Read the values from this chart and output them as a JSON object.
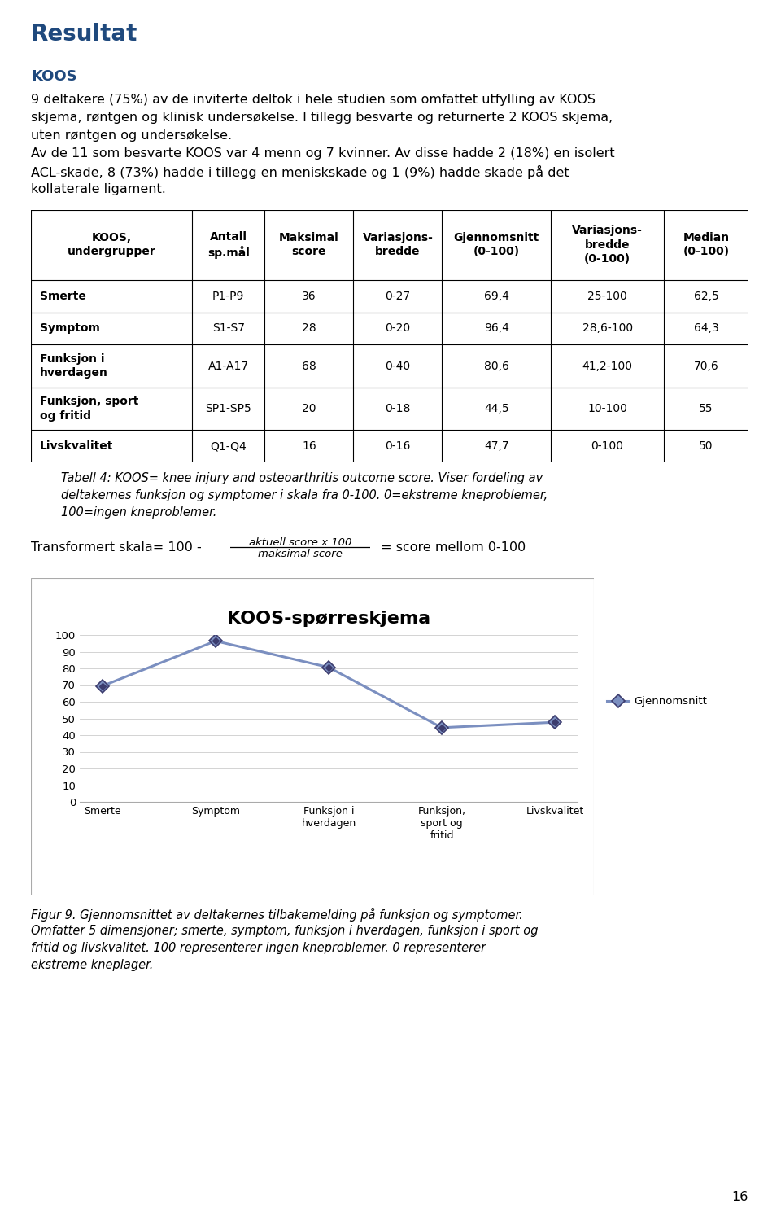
{
  "title_heading": "Resultat",
  "section_heading": "KOOS",
  "para1_lines": [
    "9 deltakere (75%) av de inviterte deltok i hele studien som omfattet utfylling av KOOS",
    "skjema, røntgen og klinisk undersøkelse. I tillegg besvarte og returnerte 2 KOOS skjema,",
    "uten røntgen og undersøkelse."
  ],
  "para2_lines": [
    "Av de 11 som besvarte KOOS var 4 menn og 7 kvinner. Av disse hadde 2 (18%) en isolert",
    "ACL-skade, 8 (73%) hadde i tillegg en meniskskade og 1 (9%) hadde skade på det",
    "kollaterale ligament."
  ],
  "table_headers": [
    "KOOS,\nundergrupper",
    "Antall\nsp.mål",
    "Maksimal\nscore",
    "Variasjons-\nbredde",
    "Gjennomsnitt\n(0-100)",
    "Variasjons-\nbredde\n(0-100)",
    "Median\n(0-100)"
  ],
  "table_rows": [
    [
      "Smerte",
      "P1-P9",
      "36",
      "0-27",
      "69,4",
      "25-100",
      "62,5"
    ],
    [
      "Symptom",
      "S1-S7",
      "28",
      "0-20",
      "96,4",
      "28,6-100",
      "64,3"
    ],
    [
      "Funksjon i\nhverdagen",
      "A1-A17",
      "68",
      "0-40",
      "80,6",
      "41,2-100",
      "70,6"
    ],
    [
      "Funksjon, sport\nog fritid",
      "SP1-SP5",
      "20",
      "0-18",
      "44,5",
      "10-100",
      "55"
    ],
    [
      "Livskvalitet",
      "Q1-Q4",
      "16",
      "0-16",
      "47,7",
      "0-100",
      "50"
    ]
  ],
  "table_caption_lines": [
    "Tabell 4: KOOS= knee injury and osteoarthritis outcome score. Viser fordeling av",
    "deltakernes funksjon og symptomer i skala fra 0-100. 0=ekstreme kneproblemer,",
    "100=ingen kneproblemer."
  ],
  "formula_pre": "Transformert skala= 100 - ",
  "formula_numerator": "aktuell score x 100",
  "formula_denominator": "maksimal score",
  "formula_post": " = score mellom 0-100",
  "chart_title": "KOOS-spørreskjema",
  "chart_categories": [
    "Smerte",
    "Symptom",
    "Funksjon i\nhverdagen",
    "Funksjon,\nsport og\nfritid",
    "Livskvalitet"
  ],
  "chart_values": [
    69.4,
    96.4,
    80.6,
    44.5,
    47.7
  ],
  "chart_legend": "Gjennomsnitt",
  "chart_yticks": [
    0,
    10,
    20,
    30,
    40,
    50,
    60,
    70,
    80,
    90,
    100
  ],
  "chart_line_color": "#7B8FC0",
  "chart_marker_fill": "#7B8FC0",
  "chart_marker_dark": "#3C3C6E",
  "fig_caption_lines": [
    "Figur 9. Gjennomsnittet av deltakernes tilbakemelding på funksjon og symptomer.",
    "Omfatter 5 dimensjoner; smerte, symptom, funksjon i hverdagen, funksjon i sport og",
    "fritid og livskvalitet. 100 representerer ingen kneproblemer. 0 representerer",
    "ekstreme kneplager."
  ],
  "page_number": "16",
  "heading_color": "#1F497D",
  "text_color": "#000000",
  "bg_color": "#ffffff",
  "title_fs": 20,
  "section_fs": 13,
  "body_fs": 11.5,
  "table_fs": 10,
  "caption_fs": 10.5,
  "chart_title_fs": 16
}
